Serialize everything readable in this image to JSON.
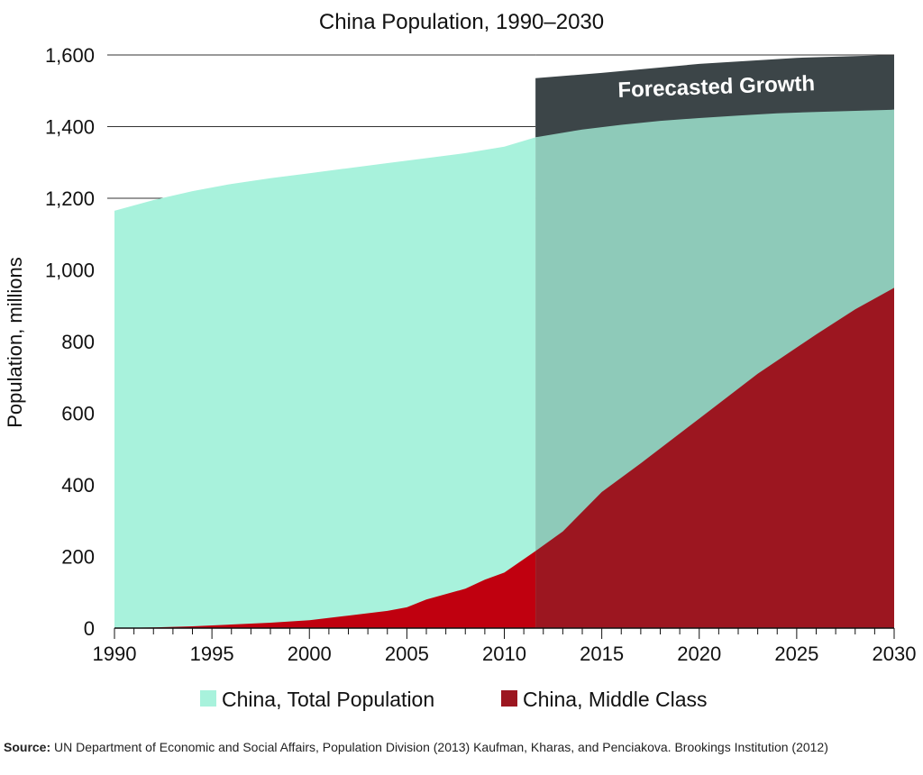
{
  "colors": {
    "total_population": "#a8f2dc",
    "total_population_forecast": "#8ecab9",
    "middle_class": "#c0000f",
    "middle_class_forecast": "#9c1620",
    "forecast_band": "#3c4548"
  },
  "chart_data": {
    "type": "area",
    "title": "China Population, 1990–2030",
    "xlabel": "",
    "ylabel": "Population, millions",
    "xlim": [
      1990,
      2030
    ],
    "ylim": [
      0,
      1600
    ],
    "x_ticks": [
      1990,
      1995,
      2000,
      2005,
      2010,
      2015,
      2020,
      2025,
      2030
    ],
    "x_tick_labels": [
      "1990",
      "1995",
      "2000",
      "2005",
      "2010",
      "2015",
      "2020",
      "2025",
      "2030"
    ],
    "y_ticks": [
      0,
      200,
      400,
      600,
      800,
      1000,
      1200,
      1400,
      1600
    ],
    "y_tick_labels": [
      "0",
      "200",
      "400",
      "600",
      "800",
      "1,000",
      "1,200",
      "1,400",
      "1,600"
    ],
    "gridlines": [
      1200,
      1400,
      1600
    ],
    "forecast_start": 2011.6,
    "forecast_label": "Forecasted Growth",
    "forecast_band_top": [
      [
        2011.6,
        1535
      ],
      [
        2015,
        1550
      ],
      [
        2020,
        1575
      ],
      [
        2025,
        1592
      ],
      [
        2030,
        1600
      ]
    ],
    "legend_position": "bottom",
    "series": [
      {
        "name": "China, Total Population",
        "points": [
          [
            1990,
            1165
          ],
          [
            1992,
            1195
          ],
          [
            1994,
            1220
          ],
          [
            1996,
            1240
          ],
          [
            1998,
            1256
          ],
          [
            2000,
            1270
          ],
          [
            2002,
            1284
          ],
          [
            2004,
            1298
          ],
          [
            2006,
            1312
          ],
          [
            2008,
            1326
          ],
          [
            2010,
            1344
          ],
          [
            2011.6,
            1370
          ],
          [
            2014,
            1392
          ],
          [
            2016,
            1405
          ],
          [
            2018,
            1416
          ],
          [
            2020,
            1424
          ],
          [
            2022,
            1431
          ],
          [
            2024,
            1437
          ],
          [
            2026,
            1441
          ],
          [
            2028,
            1444
          ],
          [
            2030,
            1447
          ]
        ]
      },
      {
        "name": "China, Middle Class",
        "points": [
          [
            1990,
            0
          ],
          [
            1992,
            2
          ],
          [
            1994,
            5
          ],
          [
            1996,
            10
          ],
          [
            1998,
            15
          ],
          [
            2000,
            22
          ],
          [
            2002,
            35
          ],
          [
            2004,
            48
          ],
          [
            2005,
            58
          ],
          [
            2006,
            80
          ],
          [
            2008,
            110
          ],
          [
            2009,
            135
          ],
          [
            2010,
            155
          ],
          [
            2011.6,
            215
          ],
          [
            2013,
            270
          ],
          [
            2015,
            380
          ],
          [
            2017,
            460
          ],
          [
            2020,
            585
          ],
          [
            2023,
            710
          ],
          [
            2026,
            820
          ],
          [
            2028,
            890
          ],
          [
            2030,
            950
          ]
        ]
      }
    ]
  },
  "source": {
    "label": "Source:",
    "text": "UN Department of Economic and Social Affairs, Population Division (2013) Kaufman, Kharas, and Penciakova. Brookings Institution (2012)"
  }
}
